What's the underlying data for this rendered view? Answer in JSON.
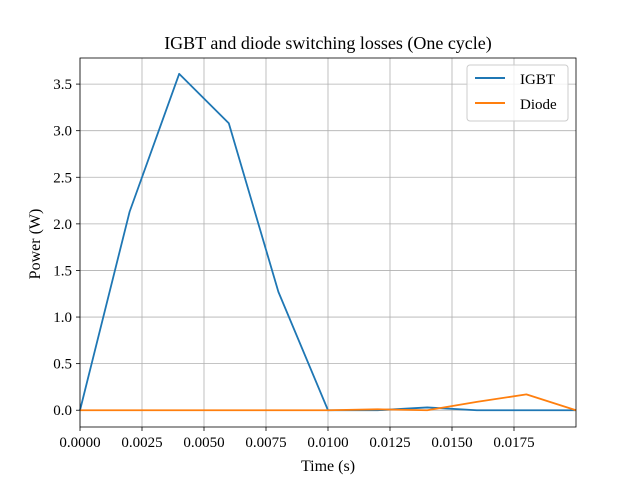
{
  "chart_data": {
    "type": "line",
    "title": "IGBT and diode switching losses (One cycle)",
    "xlabel": "Time (s)",
    "ylabel": "Power (W)",
    "xlim": [
      0,
      0.02
    ],
    "ylim": [
      -0.18,
      3.78
    ],
    "xticks": [
      0,
      0.0025,
      0.005,
      0.0075,
      0.01,
      0.0125,
      0.015,
      0.0175
    ],
    "xtick_labels": [
      "0.0000",
      "0.0025",
      "0.0050",
      "0.0075",
      "0.0100",
      "0.0125",
      "0.0150",
      "0.0175"
    ],
    "yticks": [
      0,
      0.5,
      1.0,
      1.5,
      2.0,
      2.5,
      3.0,
      3.5
    ],
    "ytick_labels": [
      "0.0",
      "0.5",
      "1.0",
      "1.5",
      "2.0",
      "2.5",
      "3.0",
      "3.5"
    ],
    "grid": true,
    "legend_position": "top-right",
    "series": [
      {
        "name": "IGBT",
        "color": "#1f77b4",
        "x": [
          0,
          0.002,
          0.004,
          0.006,
          0.008,
          0.01,
          0.012,
          0.014,
          0.016,
          0.018,
          0.02
        ],
        "y": [
          0,
          2.13,
          3.61,
          3.08,
          1.27,
          0.0,
          0.0,
          0.03,
          0.0,
          0.0,
          0.0
        ]
      },
      {
        "name": "Diode",
        "color": "#ff7f0e",
        "x": [
          0,
          0.002,
          0.004,
          0.006,
          0.008,
          0.01,
          0.012,
          0.014,
          0.016,
          0.018,
          0.02
        ],
        "y": [
          0,
          0,
          0,
          0,
          0,
          0.0,
          0.01,
          0.0,
          0.09,
          0.17,
          0.0
        ]
      }
    ]
  }
}
